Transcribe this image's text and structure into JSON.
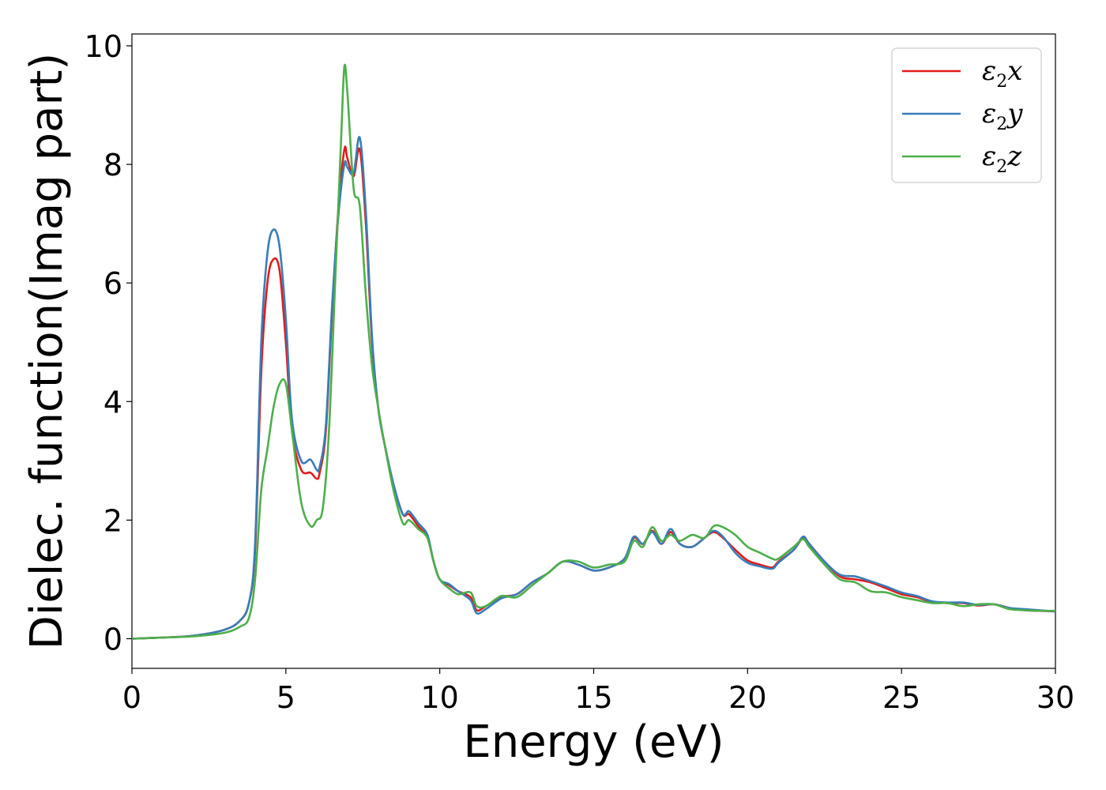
{
  "chart_data": {
    "type": "line",
    "title": "",
    "xlabel": "Energy (eV)",
    "ylabel": "Dielec. function(Imag part)",
    "xlim": [
      0,
      30
    ],
    "ylim": [
      -0.5,
      10.2
    ],
    "xticks": [
      0,
      5,
      10,
      15,
      20,
      25,
      30
    ],
    "yticks": [
      0,
      2,
      4,
      6,
      8,
      10
    ],
    "xtick_labels": [
      "0",
      "5",
      "10",
      "15",
      "20",
      "25",
      "30"
    ],
    "ytick_labels": [
      "0",
      "2",
      "4",
      "6",
      "8",
      "10"
    ],
    "grid": false,
    "legend_position": "top-right",
    "series": [
      {
        "name": "ε2x",
        "label_parts": [
          "ε",
          "2",
          "x"
        ],
        "color": "#e41a1c",
        "x": [
          0,
          1,
          2,
          3,
          3.5,
          3.8,
          4.0,
          4.2,
          4.4,
          4.6,
          4.8,
          5.0,
          5.2,
          5.5,
          5.8,
          6.0,
          6.1,
          6.3,
          6.5,
          6.7,
          6.9,
          7.0,
          7.2,
          7.4,
          7.6,
          7.8,
          8.0,
          8.2,
          8.5,
          8.8,
          9.0,
          9.3,
          9.6,
          9.8,
          10.0,
          10.3,
          10.6,
          11.0,
          11.2,
          11.5,
          12.0,
          12.5,
          13.0,
          13.5,
          14.0,
          14.5,
          15.0,
          15.5,
          16.0,
          16.3,
          16.6,
          16.9,
          17.2,
          17.5,
          17.8,
          18.2,
          18.6,
          18.9,
          19.2,
          19.6,
          20.0,
          20.4,
          20.8,
          21.0,
          21.5,
          21.8,
          22.0,
          22.5,
          23.0,
          23.5,
          24.0,
          24.5,
          25.0,
          25.5,
          26.0,
          26.5,
          27.0,
          27.5,
          28.0,
          28.5,
          29.0,
          29.5,
          30.0
        ],
        "y": [
          0,
          0.02,
          0.05,
          0.15,
          0.3,
          0.6,
          1.5,
          4.5,
          6.0,
          6.4,
          6.2,
          5.0,
          3.5,
          2.85,
          2.8,
          2.7,
          2.8,
          3.5,
          5.5,
          7.2,
          8.25,
          8.1,
          7.8,
          8.25,
          7.0,
          5.0,
          3.9,
          3.3,
          2.6,
          2.1,
          2.1,
          1.9,
          1.7,
          1.3,
          1.0,
          0.9,
          0.8,
          0.7,
          0.48,
          0.55,
          0.7,
          0.75,
          0.95,
          1.1,
          1.3,
          1.25,
          1.15,
          1.2,
          1.35,
          1.7,
          1.6,
          1.82,
          1.6,
          1.8,
          1.6,
          1.55,
          1.7,
          1.8,
          1.7,
          1.5,
          1.32,
          1.25,
          1.2,
          1.3,
          1.5,
          1.7,
          1.6,
          1.3,
          1.05,
          1.0,
          0.95,
          0.85,
          0.75,
          0.7,
          0.62,
          0.6,
          0.6,
          0.56,
          0.58,
          0.52,
          0.48,
          0.47,
          0.46
        ]
      },
      {
        "name": "ε2y",
        "label_parts": [
          "ε",
          "2",
          "y"
        ],
        "color": "#377eb8",
        "x": [
          0,
          1,
          2,
          3,
          3.5,
          3.8,
          4.0,
          4.2,
          4.4,
          4.6,
          4.8,
          5.0,
          5.2,
          5.5,
          5.8,
          6.0,
          6.1,
          6.3,
          6.5,
          6.7,
          6.9,
          7.0,
          7.2,
          7.4,
          7.6,
          7.8,
          8.0,
          8.2,
          8.5,
          8.8,
          9.0,
          9.3,
          9.6,
          9.8,
          10.0,
          10.3,
          10.6,
          11.0,
          11.2,
          11.5,
          12.0,
          12.5,
          13.0,
          13.5,
          14.0,
          14.5,
          15.0,
          15.5,
          16.0,
          16.3,
          16.6,
          16.9,
          17.2,
          17.5,
          17.8,
          18.2,
          18.6,
          18.9,
          19.2,
          19.6,
          20.0,
          20.4,
          20.8,
          21.0,
          21.5,
          21.8,
          22.0,
          22.5,
          23.0,
          23.5,
          24.0,
          24.5,
          25.0,
          25.5,
          26.0,
          26.5,
          27.0,
          27.5,
          28.0,
          28.5,
          29.0,
          29.5,
          30.0
        ],
        "y": [
          0,
          0.02,
          0.05,
          0.15,
          0.3,
          0.6,
          1.6,
          5.0,
          6.5,
          6.9,
          6.6,
          5.4,
          3.7,
          3.0,
          3.02,
          2.85,
          2.9,
          3.6,
          5.6,
          7.1,
          8.0,
          7.95,
          7.85,
          8.45,
          7.2,
          5.1,
          3.9,
          3.3,
          2.6,
          2.1,
          2.15,
          1.95,
          1.75,
          1.3,
          1.0,
          0.92,
          0.8,
          0.65,
          0.43,
          0.5,
          0.68,
          0.75,
          0.95,
          1.1,
          1.3,
          1.25,
          1.15,
          1.2,
          1.35,
          1.72,
          1.6,
          1.8,
          1.6,
          1.85,
          1.6,
          1.55,
          1.7,
          1.82,
          1.72,
          1.45,
          1.28,
          1.22,
          1.18,
          1.28,
          1.5,
          1.72,
          1.6,
          1.3,
          1.08,
          1.05,
          0.97,
          0.88,
          0.78,
          0.72,
          0.63,
          0.61,
          0.61,
          0.57,
          0.58,
          0.52,
          0.5,
          0.48,
          0.46
        ]
      },
      {
        "name": "ε2z",
        "label_parts": [
          "ε",
          "2",
          "z"
        ],
        "color": "#4daf4a",
        "x": [
          0,
          1,
          2,
          3,
          3.5,
          3.8,
          4.0,
          4.2,
          4.4,
          4.6,
          4.8,
          5.0,
          5.2,
          5.5,
          5.8,
          6.0,
          6.2,
          6.4,
          6.6,
          6.8,
          6.9,
          7.0,
          7.2,
          7.4,
          7.6,
          7.8,
          8.0,
          8.2,
          8.5,
          8.8,
          9.0,
          9.3,
          9.6,
          9.8,
          10.0,
          10.3,
          10.6,
          11.0,
          11.2,
          11.5,
          12.0,
          12.5,
          13.0,
          13.5,
          14.0,
          14.5,
          15.0,
          15.5,
          16.0,
          16.3,
          16.6,
          16.9,
          17.2,
          17.5,
          17.8,
          18.2,
          18.6,
          18.9,
          19.2,
          19.6,
          20.0,
          20.4,
          20.8,
          21.0,
          21.5,
          21.8,
          22.0,
          22.5,
          23.0,
          23.5,
          24.0,
          24.5,
          25.0,
          25.5,
          26.0,
          26.5,
          27.0,
          27.5,
          28.0,
          28.5,
          29.0,
          29.5,
          30.0
        ],
        "y": [
          0,
          0.02,
          0.04,
          0.1,
          0.2,
          0.35,
          1.0,
          2.5,
          3.2,
          3.9,
          4.3,
          4.3,
          3.5,
          2.3,
          1.9,
          2.0,
          2.2,
          3.5,
          6.0,
          8.5,
          9.65,
          9.2,
          7.6,
          7.3,
          5.8,
          4.6,
          3.9,
          3.3,
          2.5,
          1.95,
          2.0,
          1.85,
          1.7,
          1.3,
          1.0,
          0.85,
          0.75,
          0.78,
          0.55,
          0.55,
          0.72,
          0.7,
          0.9,
          1.1,
          1.3,
          1.3,
          1.2,
          1.25,
          1.3,
          1.65,
          1.55,
          1.88,
          1.65,
          1.75,
          1.65,
          1.75,
          1.7,
          1.9,
          1.88,
          1.75,
          1.55,
          1.45,
          1.35,
          1.35,
          1.55,
          1.68,
          1.55,
          1.25,
          1.0,
          0.95,
          0.8,
          0.78,
          0.7,
          0.65,
          0.6,
          0.6,
          0.55,
          0.58,
          0.58,
          0.5,
          0.48,
          0.47,
          0.47
        ]
      }
    ]
  }
}
